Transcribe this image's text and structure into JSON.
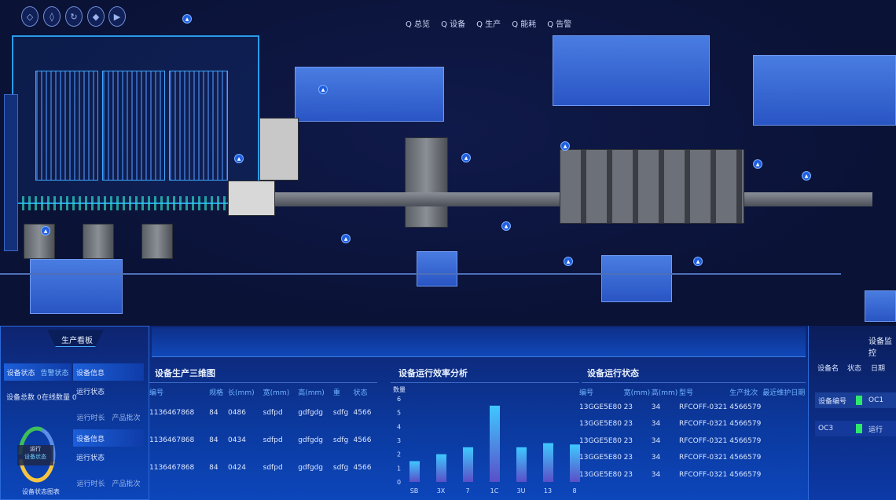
{
  "header": {
    "nav_icons": [
      "home-icon",
      "droplet-icon",
      "cycle-icon",
      "diamond-icon",
      "play-icon"
    ],
    "menu": [
      "Q 总览",
      "Q 设备",
      "Q 生产",
      "Q 能耗",
      "Q 告警"
    ]
  },
  "left_panel": {
    "title": "生产看板",
    "tabs": [
      "设备状态",
      "告警状态"
    ],
    "stats": [
      "设备总数 0",
      "在线数量 0"
    ],
    "donut_center": [
      "运行",
      "设备状态"
    ],
    "donut_caption": "设备状态图表",
    "donut_colors": [
      "#3fbf5a",
      "#5b8ee8",
      "#f5c542"
    ]
  },
  "info_list": [
    {
      "title": "设备信息",
      "status": "运行状态",
      "meta": [
        "运行时长",
        "产品批次"
      ]
    },
    {
      "title": "设备信息",
      "status": "运行状态",
      "meta": [
        "运行时长",
        "产品批次"
      ]
    }
  ],
  "table1": {
    "title": "设备生产三维图",
    "headers": [
      "编号",
      "规格",
      "长(mm)",
      "宽(mm)",
      "高(mm)",
      "重",
      "状态"
    ],
    "rows": [
      [
        "1136467868",
        "84",
        "0486",
        "sdfpd",
        "gdfgdg",
        "sdfg",
        "4566"
      ],
      [
        "1136467868",
        "84",
        "0434",
        "sdfpd",
        "gdfgdg",
        "sdfg",
        "4566"
      ],
      [
        "1136467868",
        "84",
        "0424",
        "sdfpd",
        "gdfgdg",
        "sdfg",
        "4566"
      ]
    ]
  },
  "chart_data": {
    "type": "bar",
    "title": "设备运行效率分析",
    "ylabel": "数量",
    "categories": [
      "SB",
      "3X",
      "7",
      "1C",
      "3U",
      "13",
      "8"
    ],
    "values": [
      1.5,
      2.0,
      2.5,
      5.5,
      2.5,
      2.8,
      2.7
    ],
    "yticks": [
      0,
      1,
      2,
      3,
      4,
      5,
      6
    ],
    "ylim": [
      0,
      6
    ],
    "grid": false,
    "bar_colors": [
      "#3fc8ff",
      "#5a4fc8"
    ]
  },
  "table2": {
    "title": "设备运行状态",
    "headers": [
      "编号",
      "宽(mm)",
      "高(mm)",
      "型号",
      "生产批次",
      "最近维护日期"
    ],
    "rows": [
      [
        "13GGE5E80",
        "23",
        "34",
        "RFCOFF-0321",
        "4566579"
      ],
      [
        "13GGE5E80",
        "23",
        "34",
        "RFCOFF-0321",
        "4566579"
      ],
      [
        "13GGE5E80",
        "23",
        "34",
        "RFCOFF-0321",
        "4566579"
      ],
      [
        "13GGE5E80",
        "23",
        "34",
        "RFCOFF-0321",
        "4566579"
      ],
      [
        "13GGE5E80",
        "23",
        "34",
        "RFCOFF-0321",
        "4566579"
      ]
    ]
  },
  "right_panel": {
    "title": "设备监控",
    "headers": [
      "设备名",
      "状态",
      "日期"
    ],
    "rows": [
      [
        "设备编号",
        "OC1"
      ],
      [
        "OC3",
        "运行"
      ]
    ],
    "status_color": "#2ee86a"
  }
}
